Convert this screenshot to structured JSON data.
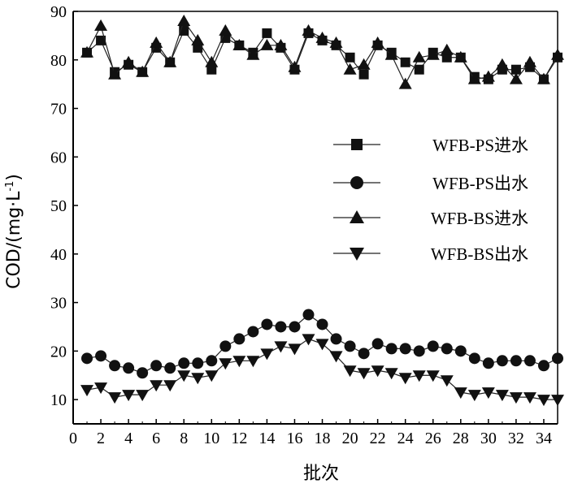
{
  "chart_data": {
    "type": "line",
    "xlabel": "批次",
    "ylabel": "COD/(mg·L",
    "ylabel_sup": "-1",
    "ylabel_close": ")",
    "xlim": [
      0,
      35
    ],
    "ylim": [
      5,
      90
    ],
    "xticks": [
      0,
      2,
      4,
      6,
      8,
      10,
      12,
      14,
      16,
      18,
      20,
      22,
      24,
      26,
      28,
      30,
      32,
      34
    ],
    "yticks": [
      10,
      20,
      30,
      40,
      50,
      60,
      70,
      80,
      90
    ],
    "grid": false,
    "legend_position": "right",
    "x": [
      1,
      2,
      3,
      4,
      5,
      6,
      7,
      8,
      9,
      10,
      11,
      12,
      13,
      14,
      15,
      16,
      17,
      18,
      19,
      20,
      21,
      22,
      23,
      24,
      25,
      26,
      27,
      28,
      29,
      30,
      31,
      32,
      33,
      34,
      35
    ],
    "series": [
      {
        "name": "WFB-PS进水",
        "marker": "square",
        "values": [
          81.5,
          84,
          77.5,
          79,
          77.5,
          82.5,
          79.5,
          86,
          82.5,
          78,
          84.5,
          83,
          81.5,
          85.5,
          82.5,
          78,
          85.5,
          84,
          83,
          80.5,
          77,
          83,
          81.5,
          79.5,
          78,
          81.5,
          80.5,
          80.5,
          76.5,
          76,
          78,
          78,
          78.5,
          76,
          80.5
        ]
      },
      {
        "name": "WFB-PS出水",
        "marker": "circle",
        "values": [
          18.5,
          19,
          17,
          16.5,
          15.5,
          17,
          16.5,
          17.5,
          17.5,
          18,
          21,
          22.5,
          24,
          25.5,
          25,
          25,
          27.5,
          25.5,
          22.5,
          21,
          19.5,
          21.5,
          20.5,
          20.5,
          20,
          21,
          20.5,
          20,
          18.5,
          17.5,
          18,
          18,
          18,
          17,
          18.5
        ]
      },
      {
        "name": "WFB-BS进水",
        "marker": "triangle-up",
        "values": [
          81.5,
          87,
          77,
          79.5,
          77.5,
          83.5,
          79.5,
          88,
          84,
          79.5,
          86,
          83,
          81,
          83,
          83,
          78.5,
          86,
          84.5,
          83.5,
          78,
          79,
          83.5,
          81,
          75,
          80.5,
          81,
          82,
          80.5,
          76,
          76.5,
          79,
          76,
          79.5,
          76,
          81
        ]
      },
      {
        "name": "WFB-BS出水",
        "marker": "triangle-down",
        "values": [
          12,
          12.5,
          10.5,
          11,
          11,
          13,
          13,
          15,
          14.5,
          15,
          17.5,
          18,
          18,
          19.5,
          21,
          20.5,
          22.5,
          21.5,
          19,
          16,
          15.5,
          16,
          15.5,
          14.5,
          15,
          15,
          14,
          11.5,
          11,
          11.5,
          11,
          10.5,
          10.5,
          10,
          10
        ]
      }
    ]
  }
}
